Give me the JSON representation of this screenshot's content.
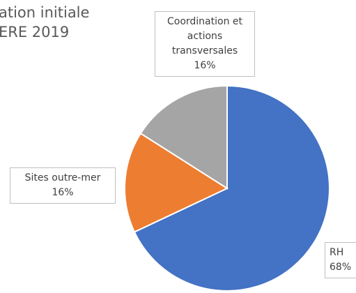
{
  "chart_data": {
    "type": "pie",
    "title_lines": [
      "ation initiale",
      "ERE 2019"
    ],
    "categories": [
      "RH",
      "Sites outre-mer",
      "Coordination et actions transversales"
    ],
    "values": [
      68,
      16,
      16
    ],
    "value_labels": [
      "68%",
      "16%",
      "16%"
    ],
    "colors": [
      "#4472c4",
      "#ed7d31",
      "#a5a5a5"
    ]
  }
}
